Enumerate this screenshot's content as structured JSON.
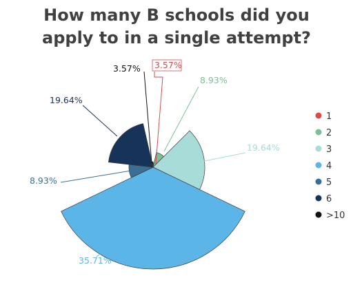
{
  "chart_data": {
    "type": "pie",
    "title_lines": [
      "How many B schools did you",
      "apply to in a single attempt?"
    ],
    "categories": [
      "1",
      "2",
      "3",
      "4",
      "5",
      "6",
      ">10"
    ],
    "values": [
      3.57,
      8.93,
      19.64,
      35.71,
      8.93,
      19.64,
      3.57
    ],
    "data_labels": [
      "3.57%",
      "8.93%",
      "19.64%",
      "35.71%",
      "8.93%",
      "19.64%",
      "3.57%"
    ],
    "colors": [
      "#d94b4b",
      "#7dbf98",
      "#a8dcd9",
      "#5bb5e6",
      "#3c6e94",
      "#17335a",
      "#111111"
    ],
    "label_colors": [
      "#d94b4b",
      "#7dbf98",
      "#a8dcd9",
      "#5bb5e6",
      "#3c6e94",
      "#17335a",
      "#111111"
    ],
    "slice_style": "polar area (variable radius)",
    "legend": {
      "position": "right",
      "entries": [
        "1",
        "2",
        "3",
        "4",
        "5",
        "6",
        ">10"
      ]
    }
  }
}
